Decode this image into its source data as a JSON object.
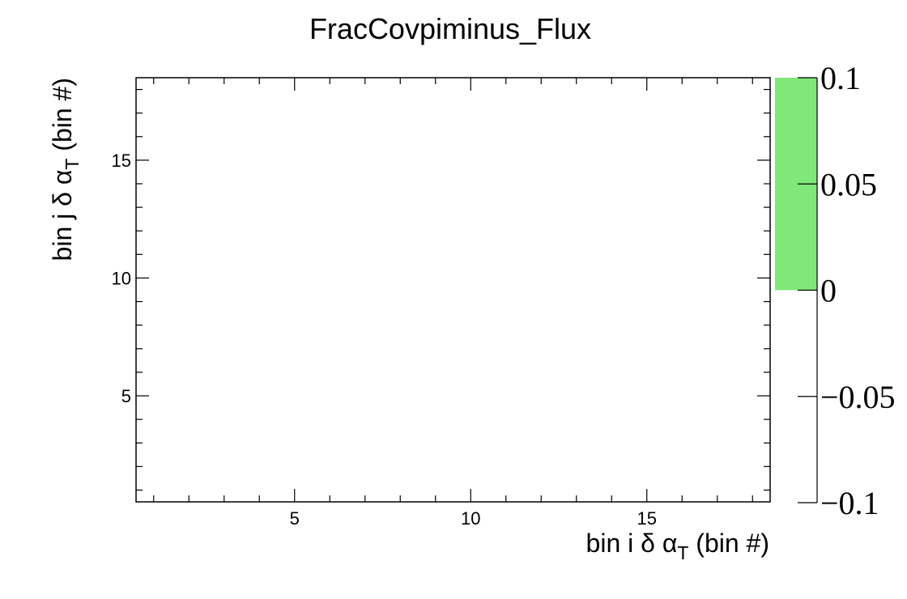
{
  "chart_data": {
    "type": "heatmap",
    "title": "FracCovpiminus_Flux",
    "xlabel": {
      "prefix": "bin i δ α",
      "sub": "T",
      "suffix": " (bin #)"
    },
    "ylabel": {
      "prefix": "bin j δ α",
      "sub": "T",
      "suffix": " (bin #)"
    },
    "xlim": [
      0.5,
      18.5
    ],
    "ylim": [
      0.5,
      18.5
    ],
    "x_ticks": [
      5,
      10,
      15
    ],
    "y_ticks": [
      5,
      10,
      15
    ],
    "z_range": [
      -0.1,
      0.1
    ],
    "z_ticks": [
      "0.1",
      "0.05",
      "0",
      "−0.05",
      "−0.1"
    ],
    "z_tick_values": [
      0.1,
      0.05,
      0,
      -0.05,
      -0.1
    ],
    "palette_fill": {
      "from": 0,
      "to": 0.1,
      "color": "#80e878"
    },
    "grid": false,
    "cells": []
  }
}
